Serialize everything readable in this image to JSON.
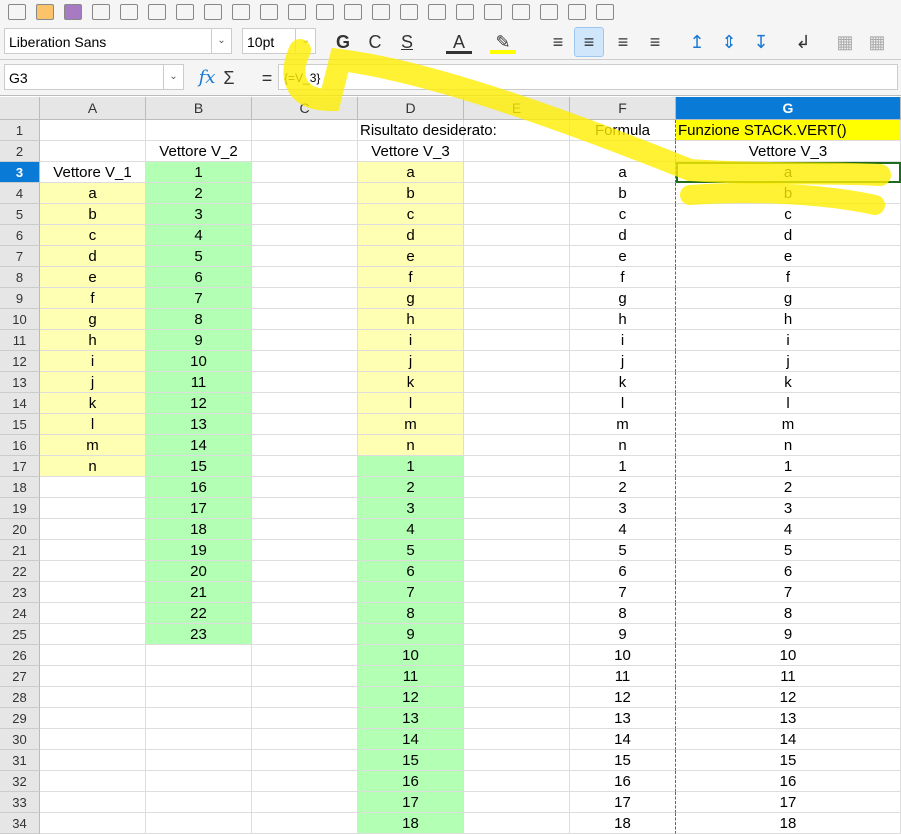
{
  "toolbar": {
    "font_name": "Liberation Sans",
    "font_size": "10pt",
    "bold": "G",
    "italic": "C",
    "underline": "S"
  },
  "formula_bar": {
    "cell_ref": "G3",
    "fx": "fx",
    "sum": "Σ",
    "equals": "=",
    "content": "{=V_3}"
  },
  "columns": [
    "A",
    "B",
    "C",
    "D",
    "E",
    "F",
    "G"
  ],
  "selected_column": "G",
  "selected_row": 3,
  "colors": {
    "yellow_fill": "#ffffb3",
    "green_fill": "#b3ffb3",
    "highlight": "#ffff00",
    "selection": "#0a7ad7"
  },
  "cells": {
    "A": {
      "3": "Vettore V_1",
      "4": "a",
      "5": "b",
      "6": "c",
      "7": "d",
      "8": "e",
      "9": "f",
      "10": "g",
      "11": "h",
      "12": "i",
      "13": "j",
      "14": "k",
      "15": "l",
      "16": "m",
      "17": "n"
    },
    "B": {
      "2": "Vettore V_2",
      "3": "1",
      "4": "2",
      "5": "3",
      "6": "4",
      "7": "5",
      "8": "6",
      "9": "7",
      "10": "8",
      "11": "9",
      "12": "10",
      "13": "11",
      "14": "12",
      "15": "13",
      "16": "14",
      "17": "15",
      "18": "16",
      "19": "17",
      "20": "18",
      "21": "19",
      "22": "20",
      "23": "21",
      "24": "22",
      "25": "23"
    },
    "D": {
      "1": "Risultato desiderato:",
      "2": "Vettore V_3",
      "3": "a",
      "4": "b",
      "5": "c",
      "6": "d",
      "7": "e",
      "8": "f",
      "9": "g",
      "10": "h",
      "11": "i",
      "12": "j",
      "13": "k",
      "14": "l",
      "15": "m",
      "16": "n",
      "17": "1",
      "18": "2",
      "19": "3",
      "20": "4",
      "21": "5",
      "22": "6",
      "23": "7",
      "24": "8",
      "25": "9",
      "26": "10",
      "27": "11",
      "28": "12",
      "29": "13",
      "30": "14",
      "31": "15",
      "32": "16",
      "33": "17",
      "34": "18"
    },
    "F": {
      "1": "Formula",
      "3": "a",
      "4": "b",
      "5": "c",
      "6": "d",
      "7": "e",
      "8": "f",
      "9": "g",
      "10": "h",
      "11": "i",
      "12": "j",
      "13": "k",
      "14": "l",
      "15": "m",
      "16": "n",
      "17": "1",
      "18": "2",
      "19": "3",
      "20": "4",
      "21": "5",
      "22": "6",
      "23": "7",
      "24": "8",
      "25": "9",
      "26": "10",
      "27": "11",
      "28": "12",
      "29": "13",
      "30": "14",
      "31": "15",
      "32": "16",
      "33": "17",
      "34": "18"
    },
    "G": {
      "1": "Funzione STACK.VERT()",
      "2": "Vettore V_3",
      "3": "a",
      "4": "b",
      "5": "c",
      "6": "d",
      "7": "e",
      "8": "f",
      "9": "g",
      "10": "h",
      "11": "i",
      "12": "j",
      "13": "k",
      "14": "l",
      "15": "m",
      "16": "n",
      "17": "1",
      "18": "2",
      "19": "3",
      "20": "4",
      "21": "5",
      "22": "6",
      "23": "7",
      "24": "8",
      "25": "9",
      "26": "10",
      "27": "11",
      "28": "12",
      "29": "13",
      "30": "14",
      "31": "15",
      "32": "16",
      "33": "17",
      "34": "18"
    }
  }
}
